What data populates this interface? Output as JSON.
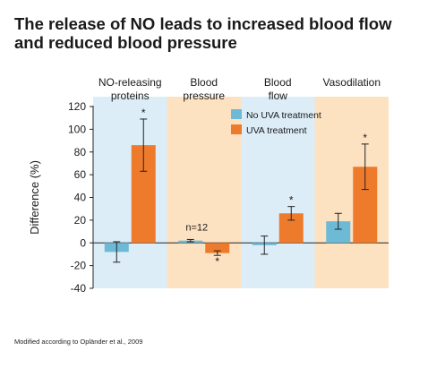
{
  "title": "The release of NO leads to increased blood flow and reduced blood pressure",
  "footnote": "Modified according to Opländer et al., 2009",
  "colors": {
    "no_uva": "#6cbad6",
    "uva": "#ee7b2c",
    "band_blue": "#dcedf8",
    "band_peach": "#fde2c2"
  },
  "chart_data": {
    "type": "bar",
    "title": "The release of NO leads to increased blood flow and reduced blood pressure",
    "ylabel": "Difference (%)",
    "xlabel": "",
    "ylim": [
      -40,
      120
    ],
    "yticks": [
      -40,
      -20,
      0,
      20,
      40,
      60,
      80,
      100,
      120
    ],
    "categories": [
      {
        "lines": [
          "NO-releasing",
          "proteins"
        ]
      },
      {
        "lines": [
          "Blood",
          "pressure"
        ]
      },
      {
        "lines": [
          "Blood",
          "flow"
        ]
      },
      {
        "lines": [
          "Vasodilation"
        ]
      }
    ],
    "series": [
      {
        "name": "No UVA treatment",
        "color": "#6cbad6",
        "values": [
          -8,
          2,
          -2,
          19
        ],
        "errors": [
          9,
          1,
          8,
          7
        ],
        "stars": [
          "",
          "",
          "",
          ""
        ]
      },
      {
        "name": "UVA treatment",
        "color": "#ee7b2c",
        "values": [
          86,
          -9,
          26,
          67
        ],
        "errors": [
          23,
          2,
          6,
          20
        ],
        "stars": [
          "*",
          "*",
          "*",
          "*"
        ]
      }
    ],
    "annotations": [
      {
        "text": "n=12",
        "category": 1
      }
    ],
    "legend_position": "top-right",
    "grid": false
  }
}
